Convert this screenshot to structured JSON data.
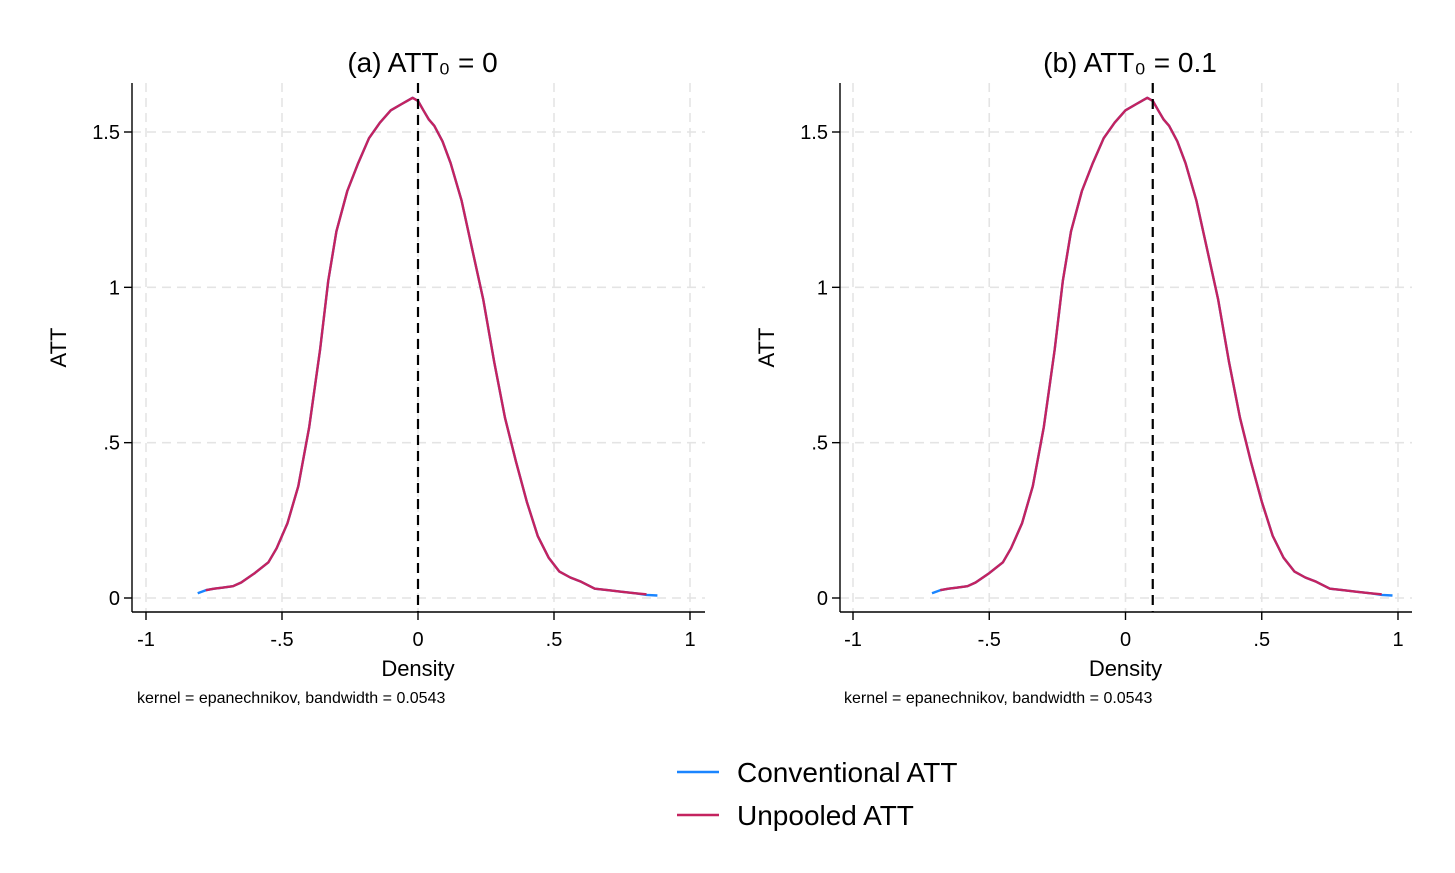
{
  "chart_data": [
    {
      "type": "line",
      "title": "(a) ATT₀ = 0",
      "xlabel": "Density",
      "ylabel": "ATT",
      "note": "kernel = epanechnikov, bandwidth = 0.0543",
      "xlim": [
        -1,
        1
      ],
      "ylim": [
        0,
        1.6
      ],
      "xticks": [
        -1,
        -0.5,
        0,
        0.5,
        1
      ],
      "xtick_labels": [
        "-1",
        "-.5",
        "0",
        ".5",
        "1"
      ],
      "yticks": [
        0,
        0.5,
        1,
        1.5
      ],
      "ytick_labels": [
        "0",
        ".5",
        "1",
        "1.5"
      ],
      "reference_x": 0,
      "series": [
        {
          "name": "Conventional ATT",
          "x": [
            -0.81,
            -0.78,
            -0.75,
            -0.72,
            -0.68,
            -0.65,
            -0.6,
            -0.55,
            -0.52,
            -0.48,
            -0.44,
            -0.4,
            -0.36,
            -0.33,
            -0.3,
            -0.26,
            -0.22,
            -0.18,
            -0.14,
            -0.1,
            -0.06,
            -0.04,
            -0.02,
            0,
            0.02,
            0.04,
            0.06,
            0.09,
            0.12,
            0.16,
            0.2,
            0.24,
            0.28,
            0.32,
            0.36,
            0.4,
            0.44,
            0.48,
            0.52,
            0.56,
            0.6,
            0.65,
            0.7,
            0.75,
            0.8,
            0.84,
            0.88
          ],
          "y": [
            0.015,
            0.025,
            0.03,
            0.033,
            0.038,
            0.05,
            0.08,
            0.115,
            0.16,
            0.24,
            0.36,
            0.55,
            0.8,
            1.02,
            1.18,
            1.31,
            1.4,
            1.48,
            1.53,
            1.57,
            1.59,
            1.6,
            1.61,
            1.6,
            1.57,
            1.54,
            1.52,
            1.47,
            1.4,
            1.28,
            1.12,
            0.96,
            0.76,
            0.58,
            0.44,
            0.31,
            0.2,
            0.13,
            0.085,
            0.066,
            0.052,
            0.03,
            0.025,
            0.02,
            0.015,
            0.01,
            0.008
          ]
        },
        {
          "name": "Unpooled ATT",
          "x": [
            -0.78,
            -0.75,
            -0.72,
            -0.68,
            -0.65,
            -0.6,
            -0.55,
            -0.52,
            -0.48,
            -0.44,
            -0.4,
            -0.36,
            -0.33,
            -0.3,
            -0.26,
            -0.22,
            -0.18,
            -0.14,
            -0.1,
            -0.06,
            -0.04,
            -0.02,
            0,
            0.02,
            0.04,
            0.06,
            0.09,
            0.12,
            0.16,
            0.2,
            0.24,
            0.28,
            0.32,
            0.36,
            0.4,
            0.44,
            0.48,
            0.52,
            0.56,
            0.6,
            0.65,
            0.7,
            0.75,
            0.8,
            0.84
          ],
          "y": [
            0.025,
            0.03,
            0.033,
            0.038,
            0.05,
            0.08,
            0.115,
            0.16,
            0.24,
            0.36,
            0.55,
            0.8,
            1.02,
            1.18,
            1.31,
            1.4,
            1.48,
            1.53,
            1.57,
            1.59,
            1.6,
            1.61,
            1.6,
            1.57,
            1.54,
            1.52,
            1.47,
            1.4,
            1.28,
            1.12,
            0.96,
            0.76,
            0.58,
            0.44,
            0.31,
            0.2,
            0.13,
            0.085,
            0.066,
            0.052,
            0.03,
            0.025,
            0.02,
            0.015,
            0.012
          ]
        }
      ]
    },
    {
      "type": "line",
      "title": "(b) ATT₀ = 0.1",
      "xlabel": "Density",
      "ylabel": "ATT",
      "note": "kernel = epanechnikov, bandwidth = 0.0543",
      "xlim": [
        -1,
        1
      ],
      "ylim": [
        0,
        1.6
      ],
      "xticks": [
        -1,
        -0.5,
        0,
        0.5,
        1
      ],
      "xtick_labels": [
        "-1",
        "-.5",
        "0",
        ".5",
        "1"
      ],
      "yticks": [
        0,
        0.5,
        1,
        1.5
      ],
      "ytick_labels": [
        "0",
        ".5",
        "1",
        "1.5"
      ],
      "reference_x": 0.1,
      "series": [
        {
          "name": "Conventional ATT",
          "x": [
            -0.71,
            -0.68,
            -0.65,
            -0.62,
            -0.58,
            -0.55,
            -0.5,
            -0.45,
            -0.42,
            -0.38,
            -0.34,
            -0.3,
            -0.26,
            -0.23,
            -0.2,
            -0.16,
            -0.12,
            -0.08,
            -0.04,
            0,
            0.04,
            0.06,
            0.08,
            0.1,
            0.12,
            0.14,
            0.16,
            0.19,
            0.22,
            0.26,
            0.3,
            0.34,
            0.38,
            0.42,
            0.46,
            0.5,
            0.54,
            0.58,
            0.62,
            0.66,
            0.7,
            0.75,
            0.8,
            0.85,
            0.9,
            0.94,
            0.98
          ],
          "y": [
            0.015,
            0.025,
            0.03,
            0.033,
            0.038,
            0.05,
            0.08,
            0.115,
            0.16,
            0.24,
            0.36,
            0.55,
            0.8,
            1.02,
            1.18,
            1.31,
            1.4,
            1.48,
            1.53,
            1.57,
            1.59,
            1.6,
            1.61,
            1.6,
            1.57,
            1.54,
            1.52,
            1.47,
            1.4,
            1.28,
            1.12,
            0.96,
            0.76,
            0.58,
            0.44,
            0.31,
            0.2,
            0.13,
            0.085,
            0.066,
            0.052,
            0.03,
            0.025,
            0.02,
            0.015,
            0.01,
            0.008
          ]
        },
        {
          "name": "Unpooled ATT",
          "x": [
            -0.68,
            -0.65,
            -0.62,
            -0.58,
            -0.55,
            -0.5,
            -0.45,
            -0.42,
            -0.38,
            -0.34,
            -0.3,
            -0.26,
            -0.23,
            -0.2,
            -0.16,
            -0.12,
            -0.08,
            -0.04,
            0,
            0.04,
            0.06,
            0.08,
            0.1,
            0.12,
            0.14,
            0.16,
            0.19,
            0.22,
            0.26,
            0.3,
            0.34,
            0.38,
            0.42,
            0.46,
            0.5,
            0.54,
            0.58,
            0.62,
            0.66,
            0.7,
            0.75,
            0.8,
            0.85,
            0.9,
            0.94
          ],
          "y": [
            0.025,
            0.03,
            0.033,
            0.038,
            0.05,
            0.08,
            0.115,
            0.16,
            0.24,
            0.36,
            0.55,
            0.8,
            1.02,
            1.18,
            1.31,
            1.4,
            1.48,
            1.53,
            1.57,
            1.59,
            1.6,
            1.61,
            1.6,
            1.57,
            1.54,
            1.52,
            1.47,
            1.4,
            1.28,
            1.12,
            0.96,
            0.76,
            0.58,
            0.44,
            0.31,
            0.2,
            0.13,
            0.085,
            0.066,
            0.052,
            0.03,
            0.025,
            0.02,
            0.015,
            0.012
          ]
        }
      ]
    }
  ],
  "legend": {
    "items": [
      {
        "label": "Conventional ATT",
        "color": "#1a85ff"
      },
      {
        "label": "Unpooled ATT",
        "color": "#c4235f"
      }
    ]
  }
}
